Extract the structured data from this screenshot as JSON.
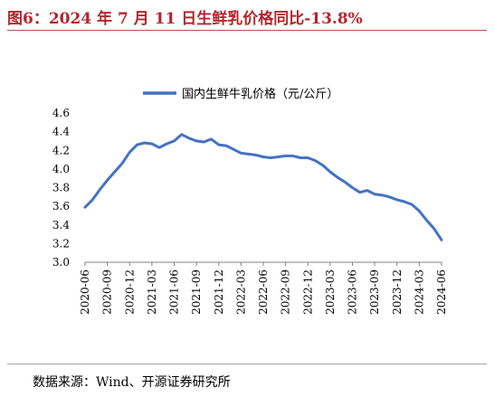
{
  "figure": {
    "title": "图6：2024 年 7 月 11 日生鲜乳价格同比-13.8%",
    "source": "数据来源：Wind、开源证券研究所"
  },
  "colors": {
    "line": "#4472c4",
    "title": "#b2262e",
    "axis": "#808080"
  },
  "chart_data": {
    "type": "line",
    "title": "",
    "xlabel": "",
    "ylabel": "",
    "ylim": [
      3.0,
      4.6
    ],
    "yticks": [
      "4.6",
      "4.4",
      "4.2",
      "4.0",
      "3.8",
      "3.6",
      "3.4",
      "3.2",
      "3.0"
    ],
    "xticks": [
      "2020-06",
      "2020-09",
      "2020-12",
      "2021-03",
      "2021-06",
      "2021-09",
      "2021-12",
      "2022-03",
      "2022-06",
      "2022-09",
      "2022-12",
      "2023-03",
      "2023-06",
      "2023-09",
      "2023-12",
      "2024-03",
      "2024-06"
    ],
    "legend_position": "top-center",
    "series": [
      {
        "name": "国内生鲜牛乳价格（元/公斤）",
        "x": [
          "2020-06",
          "2020-07",
          "2020-08",
          "2020-09",
          "2020-10",
          "2020-11",
          "2020-12",
          "2021-01",
          "2021-02",
          "2021-03",
          "2021-04",
          "2021-05",
          "2021-06",
          "2021-07",
          "2021-08",
          "2021-09",
          "2021-10",
          "2021-11",
          "2021-12",
          "2022-01",
          "2022-02",
          "2022-03",
          "2022-04",
          "2022-05",
          "2022-06",
          "2022-07",
          "2022-08",
          "2022-09",
          "2022-10",
          "2022-11",
          "2022-12",
          "2023-01",
          "2023-02",
          "2023-03",
          "2023-04",
          "2023-05",
          "2023-06",
          "2023-07",
          "2023-08",
          "2023-09",
          "2023-10",
          "2023-11",
          "2023-12",
          "2024-01",
          "2024-02",
          "2024-03",
          "2024-04",
          "2024-05",
          "2024-06"
        ],
        "values": [
          3.59,
          3.67,
          3.78,
          3.88,
          3.97,
          4.06,
          4.18,
          4.26,
          4.28,
          4.27,
          4.23,
          4.27,
          4.3,
          4.37,
          4.33,
          4.3,
          4.29,
          4.32,
          4.26,
          4.25,
          4.21,
          4.17,
          4.16,
          4.15,
          4.13,
          4.12,
          4.13,
          4.14,
          4.14,
          4.12,
          4.12,
          4.09,
          4.04,
          3.97,
          3.91,
          3.86,
          3.8,
          3.75,
          3.77,
          3.73,
          3.72,
          3.7,
          3.67,
          3.65,
          3.62,
          3.55,
          3.45,
          3.36,
          3.24
        ]
      }
    ]
  }
}
